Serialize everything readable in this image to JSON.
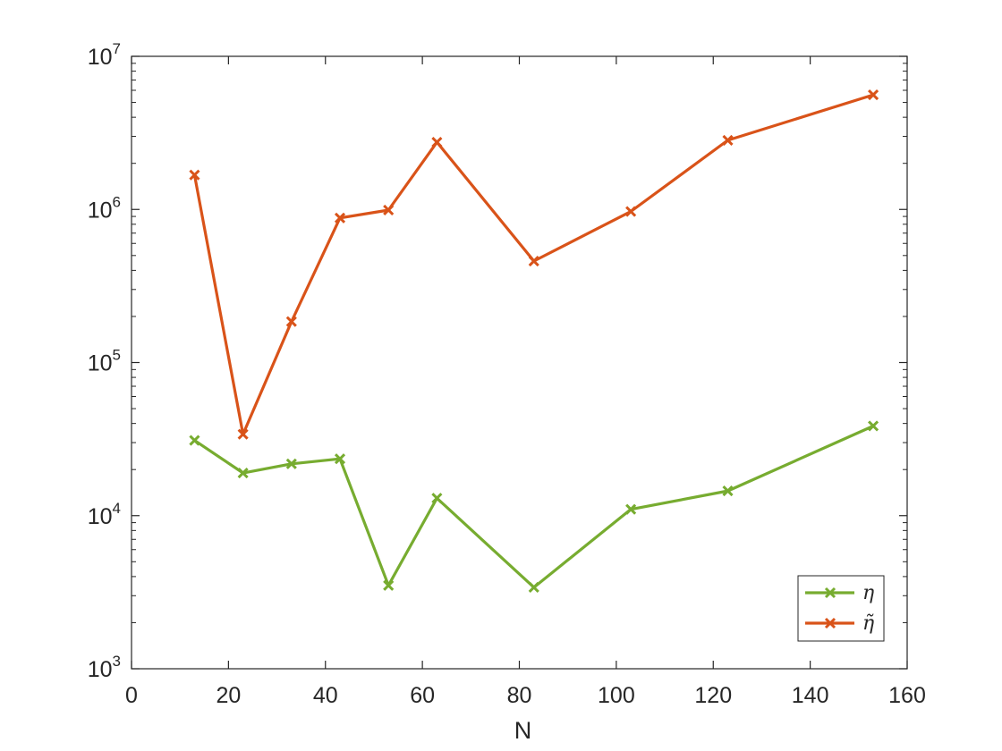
{
  "chart_data": {
    "type": "line",
    "title": "",
    "xlabel": "N",
    "ylabel": "",
    "xlim": [
      0,
      160
    ],
    "ylim": [
      1000,
      10000000
    ],
    "yscale": "log",
    "grid": false,
    "legend_position": "bottom-right",
    "x_ticks": [
      0,
      20,
      40,
      60,
      80,
      100,
      120,
      140,
      160
    ],
    "x_tick_labels": [
      "0",
      "20",
      "40",
      "60",
      "80",
      "100",
      "120",
      "140",
      "160"
    ],
    "y_ticks": [
      1000,
      10000,
      100000,
      1000000,
      10000000
    ],
    "y_tick_labels": [
      {
        "base": "10",
        "exp": "3"
      },
      {
        "base": "10",
        "exp": "4"
      },
      {
        "base": "10",
        "exp": "5"
      },
      {
        "base": "10",
        "exp": "6"
      },
      {
        "base": "10",
        "exp": "7"
      }
    ],
    "x": [
      13,
      23,
      33,
      43,
      53,
      63,
      83,
      103,
      123,
      153
    ],
    "series": [
      {
        "name": "η",
        "color": "#77ac30",
        "marker": "x",
        "values": [
          31000,
          19000,
          21800,
          23500,
          3500,
          13000,
          3400,
          11000,
          14500,
          38500
        ]
      },
      {
        "name": "η̃",
        "color": "#d95319",
        "marker": "x",
        "values": [
          1680000,
          34000,
          185000,
          880000,
          990000,
          2750000,
          460000,
          970000,
          2830000,
          5600000
        ]
      }
    ]
  }
}
